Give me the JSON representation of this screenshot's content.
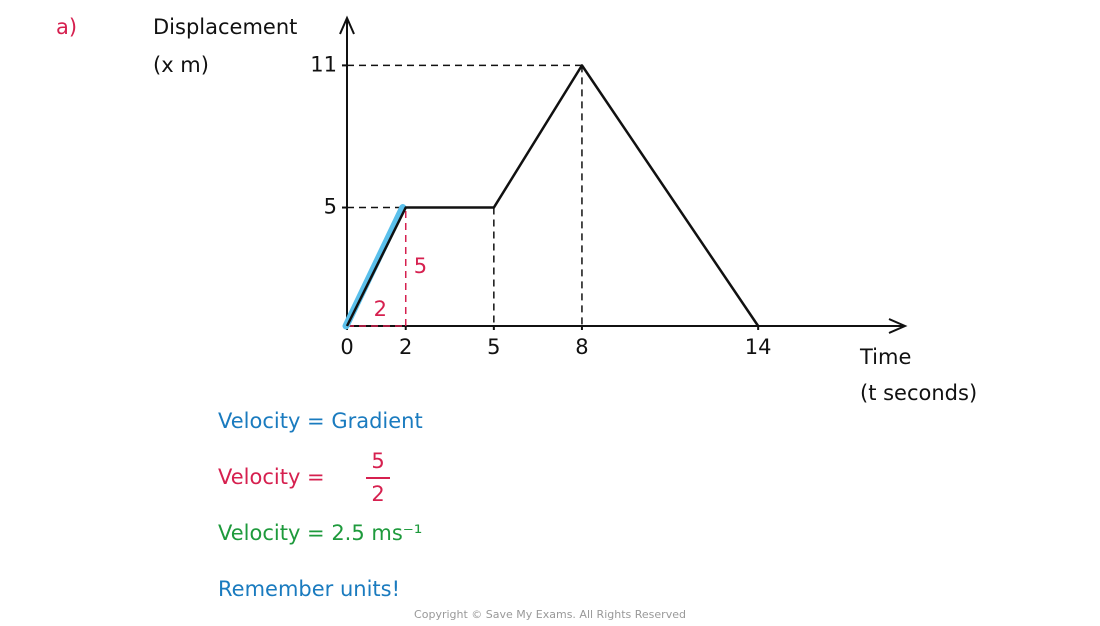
{
  "label": "a)",
  "chart_data": {
    "type": "line",
    "y_label": [
      "Displacement",
      "(x m)"
    ],
    "x_label": [
      "Time",
      "(t seconds)"
    ],
    "x": [
      0,
      2,
      5,
      8,
      14
    ],
    "values": [
      0,
      5,
      5,
      11,
      0
    ],
    "color": "#111111",
    "highlight_color": "#5bc0eb",
    "annotation_color": "#d6204f",
    "run_label": "2",
    "rise_label": "5",
    "xlim": [
      0,
      19
    ],
    "ylim": [
      0,
      13
    ],
    "xticks": [
      0,
      2,
      5,
      8,
      14
    ],
    "yticks": [
      5,
      11
    ]
  },
  "working": {
    "gradient": "Velocity = Gradient",
    "fraction": {
      "prefix": "Velocity =",
      "numerator": "5",
      "denominator": "2"
    },
    "result": "Velocity = 2.5 ms⁻¹",
    "reminder": "Remember units!"
  },
  "copyright": "Copyright © Save My Exams. All Rights Reserved"
}
